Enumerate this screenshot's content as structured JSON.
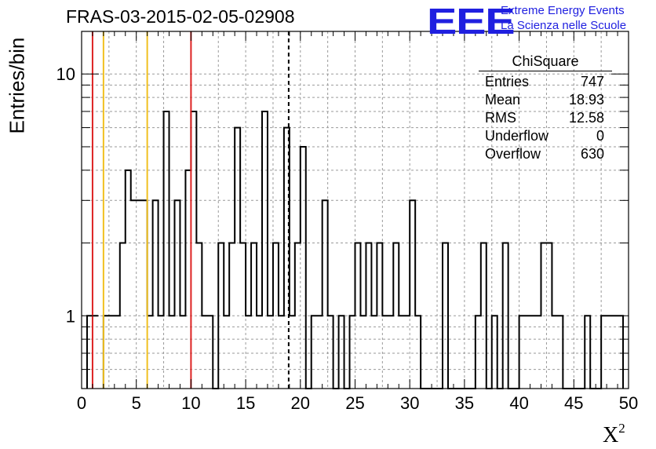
{
  "header": {
    "title": "FRAS-03-2015-02-05-02908",
    "logo": "EEE",
    "logo_line1": "Extreme Energy Events",
    "logo_line2": "La Scienza nelle Scuole"
  },
  "axes": {
    "ylabel": "Entries/bin",
    "xlabel_base": "X",
    "xlabel_sup": "2"
  },
  "stats": {
    "title": "ChiSquare",
    "rows": [
      {
        "label": "Entries",
        "value": "747"
      },
      {
        "label": "Mean",
        "value": "18.93"
      },
      {
        "label": "RMS",
        "value": "12.58"
      },
      {
        "label": "Underflow",
        "value": "0"
      },
      {
        "label": "Overflow",
        "value": "630"
      }
    ]
  },
  "colors": {
    "histogram": "#000000",
    "red_line": "#dd2222",
    "yellow_line": "#f0c020",
    "grid": "#9a9a9a"
  },
  "chart_data": {
    "type": "bar",
    "title": "FRAS-03-2015-02-05-02908",
    "xlabel": "X²",
    "ylabel": "Entries/bin",
    "xlim": [
      0,
      50
    ],
    "ylim": [
      0.5,
      15
    ],
    "ylog": true,
    "bin_width": 0.5,
    "grid": true,
    "x_ticks": [
      0,
      5,
      10,
      15,
      20,
      25,
      30,
      35,
      40,
      45,
      50
    ],
    "y_ticks": [
      1,
      10
    ],
    "bins": [
      {
        "x": 0.5,
        "y": 1
      },
      {
        "x": 1.0,
        "y": 1
      },
      {
        "x": 2.0,
        "y": 1
      },
      {
        "x": 2.5,
        "y": 1
      },
      {
        "x": 3.0,
        "y": 1
      },
      {
        "x": 3.5,
        "y": 2
      },
      {
        "x": 4.0,
        "y": 4
      },
      {
        "x": 4.5,
        "y": 3
      },
      {
        "x": 5.0,
        "y": 3
      },
      {
        "x": 5.5,
        "y": 3
      },
      {
        "x": 6.0,
        "y": 1
      },
      {
        "x": 6.5,
        "y": 3
      },
      {
        "x": 7.0,
        "y": 1
      },
      {
        "x": 7.5,
        "y": 7
      },
      {
        "x": 8.0,
        "y": 1
      },
      {
        "x": 8.5,
        "y": 3
      },
      {
        "x": 9.0,
        "y": 1
      },
      {
        "x": 9.5,
        "y": 4
      },
      {
        "x": 10.0,
        "y": 7
      },
      {
        "x": 10.5,
        "y": 2
      },
      {
        "x": 11.0,
        "y": 1
      },
      {
        "x": 11.5,
        "y": 1
      },
      {
        "x": 12.0,
        "y": 0
      },
      {
        "x": 12.5,
        "y": 2
      },
      {
        "x": 13.0,
        "y": 1
      },
      {
        "x": 13.5,
        "y": 2
      },
      {
        "x": 14.0,
        "y": 6
      },
      {
        "x": 14.5,
        "y": 2
      },
      {
        "x": 15.0,
        "y": 1
      },
      {
        "x": 15.5,
        "y": 2
      },
      {
        "x": 16.0,
        "y": 1
      },
      {
        "x": 16.5,
        "y": 7
      },
      {
        "x": 17.0,
        "y": 1
      },
      {
        "x": 17.5,
        "y": 2
      },
      {
        "x": 18.0,
        "y": 1
      },
      {
        "x": 18.5,
        "y": 6
      },
      {
        "x": 19.0,
        "y": 1
      },
      {
        "x": 19.5,
        "y": 2
      },
      {
        "x": 20.0,
        "y": 5
      },
      {
        "x": 20.5,
        "y": 0
      },
      {
        "x": 21.0,
        "y": 1
      },
      {
        "x": 21.5,
        "y": 1
      },
      {
        "x": 22.0,
        "y": 3
      },
      {
        "x": 22.5,
        "y": 1
      },
      {
        "x": 23.0,
        "y": 0
      },
      {
        "x": 23.5,
        "y": 1
      },
      {
        "x": 24.0,
        "y": 0
      },
      {
        "x": 24.5,
        "y": 1
      },
      {
        "x": 25.0,
        "y": 2
      },
      {
        "x": 25.5,
        "y": 1
      },
      {
        "x": 26.0,
        "y": 2
      },
      {
        "x": 26.5,
        "y": 1
      },
      {
        "x": 27.0,
        "y": 2
      },
      {
        "x": 27.5,
        "y": 1
      },
      {
        "x": 28.0,
        "y": 1
      },
      {
        "x": 28.5,
        "y": 2
      },
      {
        "x": 29.0,
        "y": 1
      },
      {
        "x": 29.5,
        "y": 1
      },
      {
        "x": 30.0,
        "y": 3
      },
      {
        "x": 30.5,
        "y": 1
      },
      {
        "x": 31.0,
        "y": 0
      },
      {
        "x": 31.5,
        "y": 0
      },
      {
        "x": 32.0,
        "y": 0
      },
      {
        "x": 32.5,
        "y": 0
      },
      {
        "x": 33.0,
        "y": 2
      },
      {
        "x": 33.5,
        "y": 0
      },
      {
        "x": 34.0,
        "y": 0
      },
      {
        "x": 34.5,
        "y": 0
      },
      {
        "x": 35.0,
        "y": 0
      },
      {
        "x": 35.5,
        "y": 0
      },
      {
        "x": 36.0,
        "y": 1
      },
      {
        "x": 36.5,
        "y": 2
      },
      {
        "x": 37.0,
        "y": 0
      },
      {
        "x": 37.5,
        "y": 1
      },
      {
        "x": 38.0,
        "y": 0
      },
      {
        "x": 38.5,
        "y": 2
      },
      {
        "x": 39.0,
        "y": 0
      },
      {
        "x": 39.5,
        "y": 0
      },
      {
        "x": 40.0,
        "y": 1
      },
      {
        "x": 40.5,
        "y": 1
      },
      {
        "x": 41.0,
        "y": 1
      },
      {
        "x": 41.5,
        "y": 1
      },
      {
        "x": 42.0,
        "y": 2
      },
      {
        "x": 42.5,
        "y": 2
      },
      {
        "x": 43.0,
        "y": 1
      },
      {
        "x": 43.5,
        "y": 1
      },
      {
        "x": 44.0,
        "y": 0
      },
      {
        "x": 44.5,
        "y": 0
      },
      {
        "x": 45.0,
        "y": 0
      },
      {
        "x": 45.5,
        "y": 0
      },
      {
        "x": 46.0,
        "y": 1
      },
      {
        "x": 46.5,
        "y": 0
      },
      {
        "x": 47.0,
        "y": 0
      },
      {
        "x": 47.5,
        "y": 1
      },
      {
        "x": 48.0,
        "y": 1
      },
      {
        "x": 48.5,
        "y": 1
      },
      {
        "x": 49.0,
        "y": 1
      }
    ],
    "vertical_lines": [
      {
        "x": 1.0,
        "style": "solid",
        "color": "#dd2222"
      },
      {
        "x": 2.0,
        "style": "solid",
        "color": "#f0c020"
      },
      {
        "x": 6.0,
        "style": "solid",
        "color": "#f0c020"
      },
      {
        "x": 10.0,
        "style": "solid",
        "color": "#dd2222"
      },
      {
        "x": 18.93,
        "style": "dashed",
        "color": "#000000"
      }
    ]
  }
}
